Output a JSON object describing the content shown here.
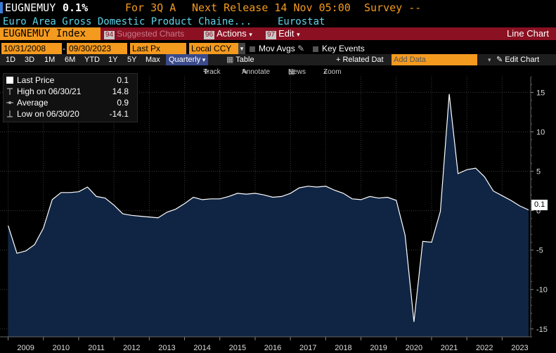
{
  "header": {
    "ticker": "EUGNEMUY",
    "last": "0.1%",
    "period": "For 3Q A",
    "next_release": "Next Release 14 Nov 05:00",
    "survey": "Survey --"
  },
  "subheader": {
    "description": "Euro Area Gross Domestic Product Chaine...",
    "source": "Eurostat"
  },
  "toolbar": {
    "security": "EUGNEMUY Index",
    "suggested_tag": "94",
    "suggested": "Suggested Charts",
    "actions_tag": "96",
    "actions": "Actions",
    "edit_tag": "97",
    "edit": "Edit",
    "chart_type": "Line Chart"
  },
  "controls": {
    "start_date": "10/31/2008",
    "end_date": "09/30/2023",
    "field": "Last Px",
    "currency": "Local CCY",
    "mov_avgs": "Mov Avgs",
    "key_events": "Key Events"
  },
  "periods": {
    "items": [
      "1D",
      "3D",
      "1M",
      "6M",
      "YTD",
      "1Y",
      "5Y",
      "Max"
    ],
    "frequency": "Quarterly",
    "table": "Table",
    "related": "+ Related Dat",
    "add_data_placeholder": "Add Data",
    "edit_chart": "Edit Chart"
  },
  "tools": {
    "track": "Track",
    "annotate": "Annotate",
    "news": "News",
    "zoom": "Zoom"
  },
  "legend": {
    "last_label": "Last Price",
    "last_value": "0.1",
    "high_label": "High on 06/30/21",
    "high_value": "14.8",
    "avg_label": "Average",
    "avg_value": "0.9",
    "low_label": "Low on 06/30/20",
    "low_value": "-14.1"
  },
  "last_badge": "0.1",
  "colors": {
    "orange": "#f39a1f",
    "maroon": "#8a1022",
    "cyan": "#5fd3e8",
    "area_fill": "#102544",
    "line": "#ffffff"
  },
  "chart_data": {
    "type": "area",
    "title": "",
    "xlabel": "",
    "ylabel": "",
    "ylim": [
      -16,
      17
    ],
    "yticks": [
      -15,
      -10,
      -5,
      0,
      5,
      10,
      15
    ],
    "xticks": [
      "2009",
      "2010",
      "2011",
      "2012",
      "2013",
      "2014",
      "2015",
      "2016",
      "2017",
      "2018",
      "2019",
      "2020",
      "2021",
      "2022",
      "2023"
    ],
    "x": [
      "2008Q4",
      "2009Q1",
      "2009Q2",
      "2009Q3",
      "2009Q4",
      "2010Q1",
      "2010Q2",
      "2010Q3",
      "2010Q4",
      "2011Q1",
      "2011Q2",
      "2011Q3",
      "2011Q4",
      "2012Q1",
      "2012Q2",
      "2012Q3",
      "2012Q4",
      "2013Q1",
      "2013Q2",
      "2013Q3",
      "2013Q4",
      "2014Q1",
      "2014Q2",
      "2014Q3",
      "2014Q4",
      "2015Q1",
      "2015Q2",
      "2015Q3",
      "2015Q4",
      "2016Q1",
      "2016Q2",
      "2016Q3",
      "2016Q4",
      "2017Q1",
      "2017Q2",
      "2017Q3",
      "2017Q4",
      "2018Q1",
      "2018Q2",
      "2018Q3",
      "2018Q4",
      "2019Q1",
      "2019Q2",
      "2019Q3",
      "2019Q4",
      "2020Q1",
      "2020Q2",
      "2020Q3",
      "2020Q4",
      "2021Q1",
      "2021Q2",
      "2021Q3",
      "2021Q4",
      "2022Q1",
      "2022Q2",
      "2022Q3",
      "2022Q4",
      "2023Q1",
      "2023Q2",
      "2023Q3"
    ],
    "series": [
      {
        "values": [
          -1.9,
          -5.4,
          -5.1,
          -4.3,
          -2.2,
          1.4,
          2.3,
          2.3,
          2.4,
          3.0,
          1.8,
          1.6,
          0.7,
          -0.4,
          -0.6,
          -0.7,
          -0.8,
          -0.9,
          -0.2,
          0.2,
          0.9,
          1.7,
          1.4,
          1.5,
          1.5,
          1.8,
          2.2,
          2.1,
          2.2,
          2.0,
          1.7,
          1.8,
          2.2,
          2.9,
          3.1,
          3.0,
          3.1,
          2.6,
          2.2,
          1.5,
          1.4,
          1.8,
          1.6,
          1.7,
          1.3,
          -3.1,
          -14.1,
          -3.9,
          -4.0,
          -0.1,
          14.8,
          4.7,
          5.2,
          5.4,
          4.3,
          2.5,
          1.9,
          1.3,
          0.6,
          0.1
        ]
      }
    ],
    "grid": true,
    "y_axis_side": "right"
  }
}
